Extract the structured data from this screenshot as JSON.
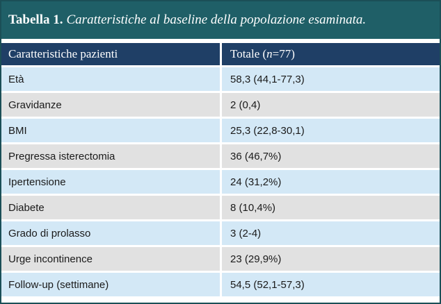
{
  "table": {
    "title_label": "Tabella 1.",
    "title_caption": "Caratteristiche al baseline della popolazione esaminata.",
    "header": {
      "col1": "Caratteristiche pazienti",
      "col2_prefix": "Totale (",
      "col2_italic": "n",
      "col2_suffix": "=77)"
    },
    "rows": [
      {
        "label": "Età",
        "value": "58,3 (44,1-77,3)"
      },
      {
        "label": "Gravidanze",
        "value": "2 (0,4)"
      },
      {
        "label": "BMI",
        "value": "25,3 (22,8-30,1)"
      },
      {
        "label": "Pregressa isterectomia",
        "value": "36 (46,7%)"
      },
      {
        "label": "Ipertensione",
        "value": "24 (31,2%)"
      },
      {
        "label": "Diabete",
        "value": "8 (10,4%)"
      },
      {
        "label": "Grado di prolasso",
        "value": "3 (2-4)"
      },
      {
        "label": "Urge incontinence",
        "value": "23 (29,9%)"
      },
      {
        "label": "Follow-up (settimane)",
        "value": "54,5 (52,1-57,3)"
      }
    ],
    "colors": {
      "title_bg": "#1f5f67",
      "header_bg": "#1f3f66",
      "row_blue": "#d3e8f6",
      "row_gray": "#e1e1e1"
    }
  }
}
